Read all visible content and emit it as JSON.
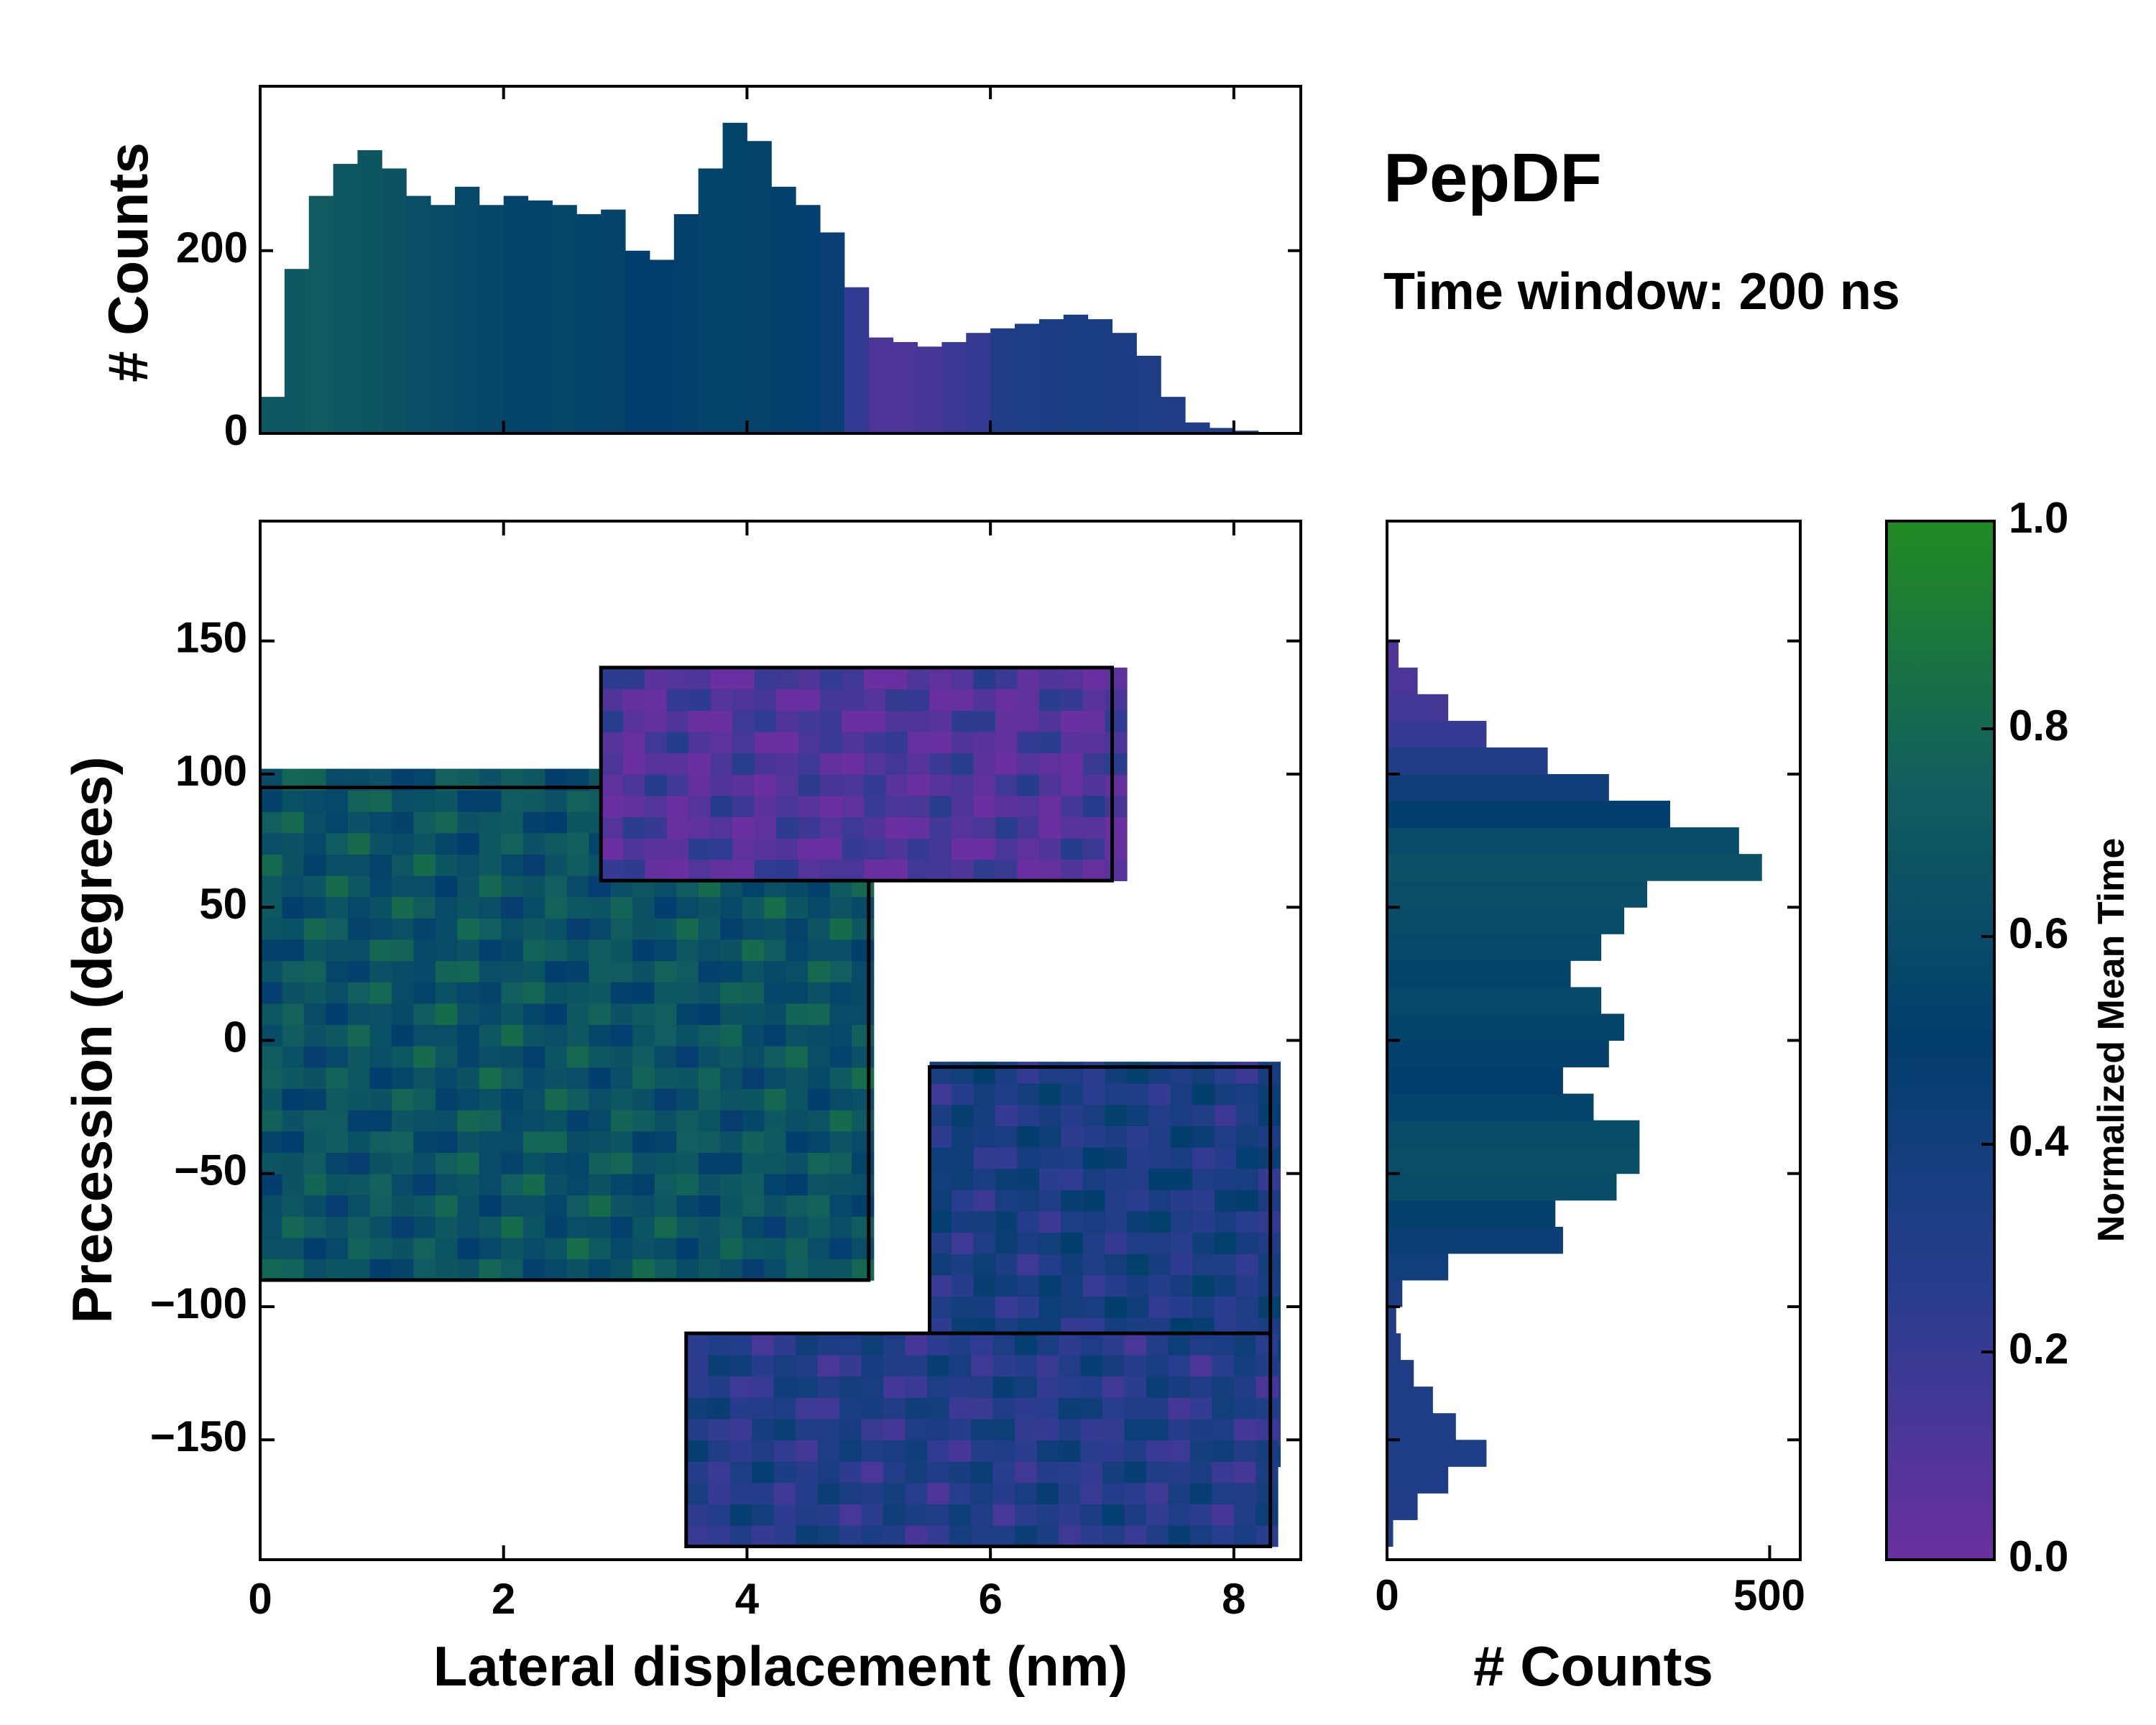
{
  "chart_data": {
    "type": "heatmap",
    "title": "PepDF",
    "subtitle": "Time window: 200 ns",
    "xlabel": "Lateral displacement (nm)",
    "ylabel": "Precession (degrees)",
    "xlim": [
      0,
      8.55
    ],
    "ylim": [
      -195,
      195
    ],
    "xticks": [
      0,
      2,
      4,
      6,
      8
    ],
    "yticks": [
      -150,
      -100,
      -50,
      0,
      50,
      100,
      150
    ],
    "yticklabels": [
      "−150",
      "−100",
      "−50",
      "0",
      "50",
      "100",
      "150"
    ],
    "colorbar": {
      "label": "Normalized Mean Time",
      "range": [
        0,
        1
      ],
      "ticks": [
        "0.0",
        "0.2",
        "0.4",
        "0.6",
        "0.8",
        "1.0"
      ],
      "colors": [
        "#6a2fa0",
        "#2a3d8f",
        "#023e6d",
        "#125e5e",
        "#228b22"
      ]
    },
    "top_histogram": {
      "ylabel": "# Counts",
      "yticks": [
        "0",
        "200"
      ],
      "ylim": [
        0,
        380
      ],
      "x": [
        0.1,
        0.3,
        0.5,
        0.7,
        0.9,
        1.1,
        1.3,
        1.5,
        1.7,
        1.9,
        2.1,
        2.3,
        2.5,
        2.7,
        2.9,
        3.1,
        3.3,
        3.5,
        3.7,
        3.9,
        4.1,
        4.3,
        4.5,
        4.7,
        4.9,
        5.1,
        5.3,
        5.5,
        5.7,
        5.9,
        6.1,
        6.3,
        6.5,
        6.7,
        6.9,
        7.1,
        7.3,
        7.5,
        7.7,
        7.9,
        8.1,
        8.3
      ],
      "counts": [
        40,
        180,
        260,
        295,
        310,
        290,
        260,
        250,
        270,
        250,
        260,
        255,
        250,
        240,
        245,
        200,
        190,
        240,
        290,
        340,
        320,
        270,
        250,
        220,
        160,
        105,
        100,
        95,
        100,
        110,
        115,
        120,
        125,
        130,
        125,
        110,
        85,
        40,
        12,
        6,
        3,
        1
      ],
      "mean_time": [
        0.7,
        0.7,
        0.72,
        0.7,
        0.68,
        0.66,
        0.62,
        0.6,
        0.58,
        0.56,
        0.55,
        0.55,
        0.56,
        0.55,
        0.54,
        0.5,
        0.5,
        0.52,
        0.55,
        0.55,
        0.54,
        0.52,
        0.48,
        0.45,
        0.22,
        0.12,
        0.12,
        0.14,
        0.18,
        0.2,
        0.3,
        0.33,
        0.34,
        0.35,
        0.35,
        0.34,
        0.33,
        0.3,
        0.3,
        0.3,
        0.3,
        0.3
      ]
    },
    "right_histogram": {
      "xlabel": "# Counts",
      "xticks": [
        "0",
        "500"
      ],
      "xlim": [
        0,
        540
      ],
      "y": [
        -190,
        -180,
        -170,
        -160,
        -150,
        -140,
        -130,
        -120,
        -110,
        -100,
        -90,
        -80,
        -70,
        -60,
        -50,
        -40,
        -30,
        -20,
        -10,
        0,
        10,
        20,
        30,
        40,
        50,
        60,
        70,
        80,
        90,
        100,
        110,
        120,
        130,
        140
      ],
      "counts": [
        8,
        40,
        80,
        130,
        90,
        60,
        35,
        18,
        12,
        20,
        80,
        230,
        220,
        300,
        330,
        330,
        270,
        230,
        290,
        310,
        280,
        240,
        280,
        310,
        340,
        490,
        460,
        370,
        290,
        210,
        130,
        80,
        40,
        15
      ],
      "mean_time": [
        0.3,
        0.3,
        0.32,
        0.33,
        0.33,
        0.33,
        0.32,
        0.3,
        0.32,
        0.35,
        0.4,
        0.45,
        0.52,
        0.6,
        0.62,
        0.6,
        0.55,
        0.5,
        0.52,
        0.55,
        0.58,
        0.55,
        0.58,
        0.6,
        0.62,
        0.65,
        0.6,
        0.5,
        0.42,
        0.3,
        0.2,
        0.15,
        0.12,
        0.1
      ]
    },
    "clusters": [
      {
        "x": [
          0,
          5.0
        ],
        "y": [
          -90,
          95
        ],
        "mean_time": 0.65,
        "note": "green-blue mixed region"
      },
      {
        "x": [
          2.8,
          7.0
        ],
        "y": [
          60,
          140
        ],
        "mean_time": 0.1,
        "note": "purple region"
      },
      {
        "x": [
          5.5,
          8.3
        ],
        "y": [
          -160,
          -10
        ],
        "mean_time": 0.35,
        "note": "blue region"
      },
      {
        "x": [
          3.5,
          8.3
        ],
        "y": [
          -190,
          -110
        ],
        "mean_time": 0.3,
        "note": "bottom blue region"
      }
    ]
  }
}
